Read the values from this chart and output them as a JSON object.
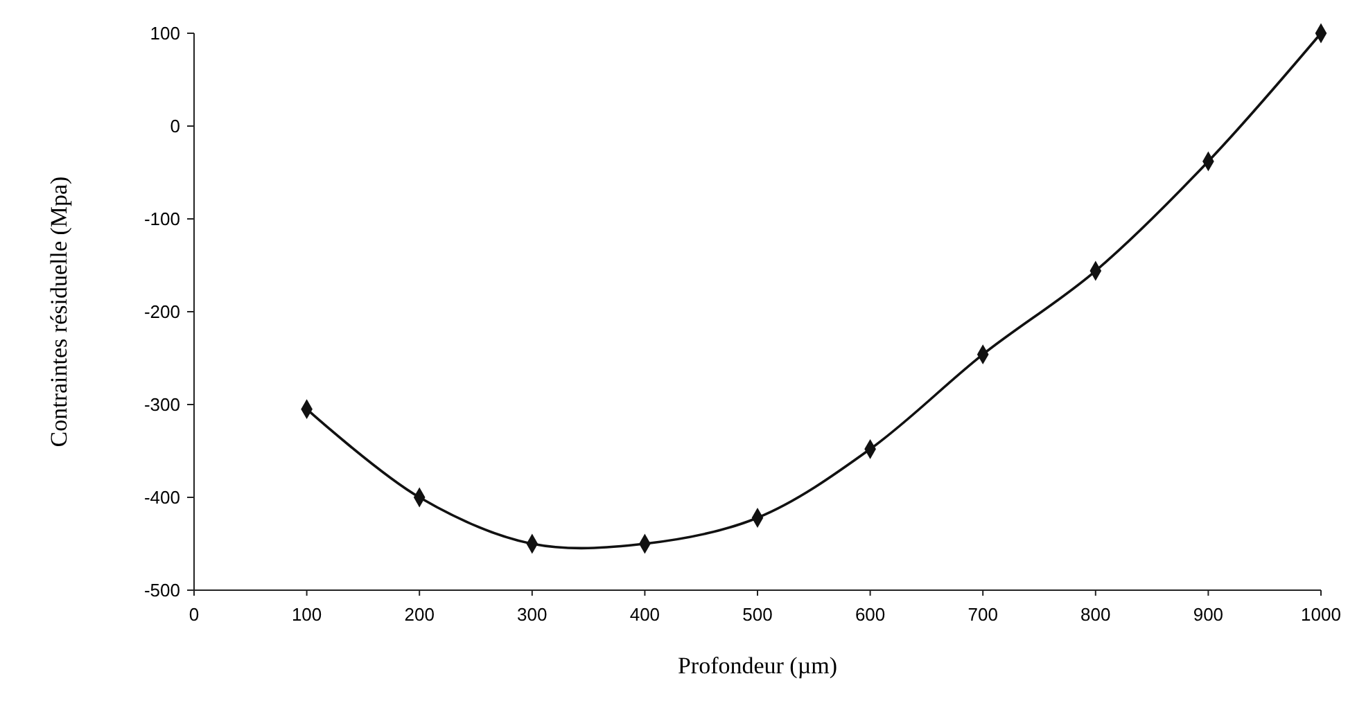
{
  "chart_data": {
    "type": "line",
    "xlabel": "Profondeur (µm)",
    "ylabel": "Contraintes résiduelle (Mpa)",
    "x": [
      100,
      200,
      300,
      400,
      500,
      600,
      700,
      800,
      900,
      1000
    ],
    "series": [
      {
        "color": "#111111",
        "values": [
          -305,
          -400,
          -450,
          -450,
          -422,
          -348,
          -246,
          -156,
          -38,
          100
        ]
      }
    ],
    "xlim": [
      0,
      1000
    ],
    "xticks": [
      0,
      100,
      200,
      300,
      400,
      500,
      600,
      700,
      800,
      900,
      1000
    ],
    "ylim": [
      -500,
      100
    ],
    "yticks": [
      -500,
      -400,
      -300,
      -200,
      -100,
      0,
      100
    ],
    "grid": false,
    "marker": "diamond",
    "line_style": "solid"
  }
}
